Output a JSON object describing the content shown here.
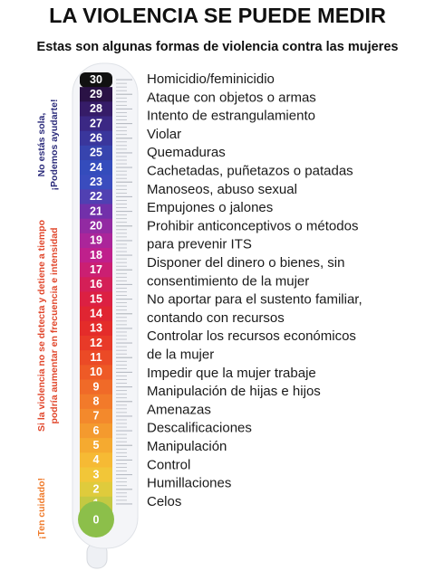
{
  "header": {
    "title": "LA VIOLENCIA SE PUEDE MEDIR",
    "subtitle": "Estas son algunas formas de violencia contra las mujeres"
  },
  "side_notes": {
    "support": [
      "No estás sola,",
      "¡Podemos ayudarte!"
    ],
    "warning": [
      "Si la violencia no se detecta y detiene a tiempo",
      "podría aumentar en frecuencia e intensidad"
    ],
    "caution": "¡Ten cuidado!"
  },
  "scale": {
    "levels": [
      {
        "label": "30",
        "color": "#111111"
      },
      {
        "label": "29",
        "color": "#2a1245"
      },
      {
        "label": "28",
        "color": "#361c68"
      },
      {
        "label": "27",
        "color": "#3b2884"
      },
      {
        "label": "26",
        "color": "#3a369c"
      },
      {
        "label": "25",
        "color": "#3744ae"
      },
      {
        "label": "24",
        "color": "#344cbc"
      },
      {
        "label": "23",
        "color": "#3a4cbe"
      },
      {
        "label": "22",
        "color": "#5040b2"
      },
      {
        "label": "21",
        "color": "#7230aa"
      },
      {
        "label": "20",
        "color": "#922aa2"
      },
      {
        "label": "19",
        "color": "#ab259a"
      },
      {
        "label": "18",
        "color": "#bf208c"
      },
      {
        "label": "17",
        "color": "#cb1f72"
      },
      {
        "label": "16",
        "color": "#d41f57"
      },
      {
        "label": "15",
        "color": "#dc2042"
      },
      {
        "label": "14",
        "color": "#e02532"
      },
      {
        "label": "13",
        "color": "#e42c2a"
      },
      {
        "label": "12",
        "color": "#e83a28"
      },
      {
        "label": "11",
        "color": "#eb4a26"
      },
      {
        "label": "10",
        "color": "#ee5a26"
      },
      {
        "label": "9",
        "color": "#f06a28"
      },
      {
        "label": "8",
        "color": "#f27a2a"
      },
      {
        "label": "7",
        "color": "#f3892c"
      },
      {
        "label": "6",
        "color": "#f49a2e"
      },
      {
        "label": "5",
        "color": "#f5aa30"
      },
      {
        "label": "4",
        "color": "#f6ba34"
      },
      {
        "label": "3",
        "color": "#f2c638"
      },
      {
        "label": "2",
        "color": "#dfcb3c"
      },
      {
        "label": "1",
        "color": "#c4c942"
      },
      {
        "label": "0",
        "color": "#8cbf4a"
      }
    ]
  },
  "items": [
    {
      "lines": [
        "Homicidio/feminicidio"
      ]
    },
    {
      "lines": [
        "Ataque con objetos o armas"
      ]
    },
    {
      "lines": [
        "Intento de estrangulamiento"
      ]
    },
    {
      "lines": [
        "Violar"
      ]
    },
    {
      "lines": [
        "Quemaduras"
      ]
    },
    {
      "lines": [
        "Cachetadas, puñetazos o patadas"
      ]
    },
    {
      "lines": [
        "Manoseos, abuso sexual"
      ]
    },
    {
      "lines": [
        "Empujones o jalones"
      ]
    },
    {
      "lines": [
        "Prohibir anticonceptivos o métodos",
        "para prevenir ITS"
      ]
    },
    {
      "lines": [
        "Disponer del dinero o bienes, sin",
        "consentimiento de la mujer"
      ]
    },
    {
      "lines": [
        "No aportar para el sustento familiar,",
        "contando con recursos"
      ]
    },
    {
      "lines": [
        "Controlar los recursos económicos",
        "de la mujer"
      ]
    },
    {
      "lines": [
        "Impedir que la mujer trabaje"
      ]
    },
    {
      "lines": [
        "Manipulación de hijas e hijos"
      ]
    },
    {
      "lines": [
        "Amenazas"
      ]
    },
    {
      "lines": [
        "Descalificaciones"
      ]
    },
    {
      "lines": [
        "Manipulación"
      ]
    },
    {
      "lines": [
        "Control"
      ]
    },
    {
      "lines": [
        "Humillaciones"
      ]
    },
    {
      "lines": [
        "Celos"
      ]
    }
  ]
}
